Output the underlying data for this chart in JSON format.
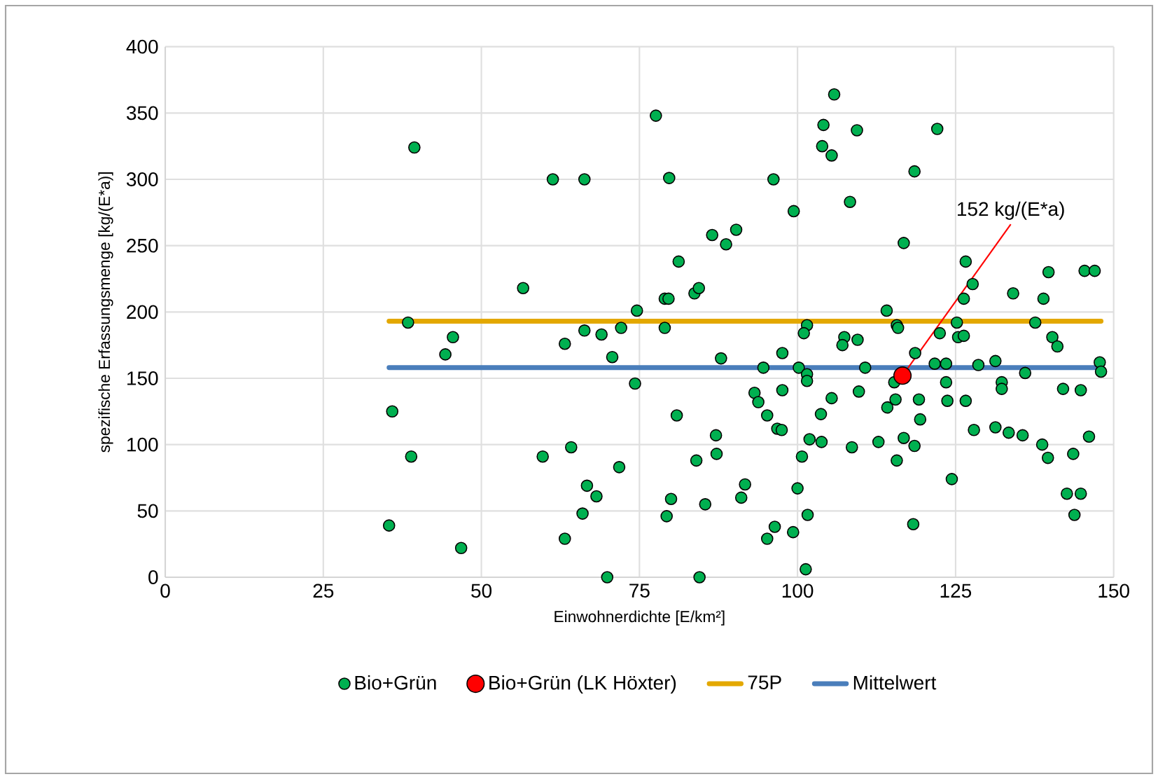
{
  "chart_data": {
    "type": "scatter",
    "xlabel": "Einwohnerdichte [E/km²]",
    "ylabel": "spezifische Erfassungsmenge [kg/(E*a)]",
    "xlim": [
      0,
      150
    ],
    "xticks": [
      0,
      25,
      50,
      75,
      100,
      125,
      150
    ],
    "ylim": [
      0,
      400
    ],
    "yticks": [
      0,
      50,
      100,
      150,
      200,
      250,
      300,
      350,
      400
    ],
    "grid": true,
    "legend": "bottom",
    "marker": "circle",
    "annotations": [
      {
        "text": "152 kg/(E*a)",
        "x": 116.6,
        "y": 152
      }
    ],
    "series": [
      {
        "name": "Bio+Grün",
        "type": "scatter",
        "color": "#00b050",
        "x": [
          39.4,
          61.3,
          66.3,
          77.6,
          79.7,
          86.5,
          88.7,
          90.3,
          81.2,
          56.6,
          79,
          79.6,
          83.7,
          84.4,
          74.6,
          38.4,
          66.3,
          72.1,
          79,
          45.5,
          63.2,
          69,
          44.3,
          70.7,
          87.9,
          74.3,
          35.9,
          80.9,
          38.9,
          59.7,
          64.2,
          87.1,
          87.2,
          84,
          71.8,
          66.7,
          68.2,
          80,
          85.4,
          79.3,
          66,
          35.4,
          46.8,
          63.2,
          69.9,
          84.5,
          105.8,
          104.1,
          109.4,
          122.1,
          103.9,
          105.4,
          118.5,
          96.2,
          108.3,
          99.4,
          116.8,
          126.6,
          139.7,
          145.4,
          147,
          127.7,
          134.1,
          126.3,
          138.9,
          114.1,
          101.5,
          101,
          115.7,
          115.9,
          125.2,
          137.6,
          122.5,
          125.4,
          126.3,
          107.4,
          107.1,
          109.5,
          140.3,
          141.1,
          97.6,
          118.6,
          94.6,
          100.2,
          110.7,
          121.7,
          123.5,
          128.6,
          131.3,
          147.8,
          148,
          101.5,
          101.5,
          136,
          115.3,
          123.5,
          132.3,
          132.3,
          93.2,
          93.8,
          97.6,
          109.7,
          105.4,
          119.2,
          123.7,
          126.6,
          142,
          144.8,
          95.2,
          96.8,
          97.5,
          103.7,
          115.5,
          114.2,
          119.4,
          127.9,
          131.3,
          133.4,
          135.6,
          138.7,
          139.6,
          143.6,
          146.1,
          101.9,
          103.8,
          100.7,
          108.6,
          112.8,
          116.8,
          118.5,
          115.7,
          124.4,
          91.7,
          91.1,
          100,
          142.6,
          144.8,
          143.8,
          96.4,
          95.2,
          99.3,
          101.6,
          118.3,
          101.3
        ],
        "values": [
          324,
          300,
          300,
          348,
          301,
          258,
          251,
          262,
          238,
          218,
          210,
          210,
          214,
          218,
          201,
          192,
          186,
          188,
          188,
          181,
          176,
          183,
          168,
          166,
          165,
          146,
          125,
          122,
          91,
          91,
          98,
          107,
          93,
          88,
          83,
          69,
          61,
          59,
          55,
          46,
          48,
          39,
          22,
          29,
          0,
          0,
          364,
          341,
          337,
          338,
          325,
          318,
          306,
          300,
          283,
          276,
          252,
          238,
          230,
          231,
          231,
          221,
          214,
          210,
          210,
          201,
          190,
          184,
          190,
          188,
          192,
          192,
          184,
          181,
          182,
          181,
          175,
          179,
          181,
          174,
          169,
          169,
          158,
          158,
          158,
          161,
          161,
          160,
          163,
          162,
          155,
          153,
          148,
          154,
          147,
          147,
          147,
          142,
          139,
          132,
          141,
          140,
          135,
          134,
          133,
          133,
          142,
          141,
          122,
          112,
          111,
          123,
          134,
          128,
          119,
          111,
          113,
          109,
          107,
          100,
          90,
          93,
          106,
          104,
          102,
          91,
          98,
          102,
          105,
          99,
          88,
          74,
          70,
          60,
          67,
          63,
          63,
          47,
          38,
          29,
          34,
          47,
          40,
          6
        ]
      },
      {
        "name": "Bio+Grün (LK Höxter)",
        "type": "scatter",
        "color": "#ff0000",
        "x": [
          116.6
        ],
        "values": [
          152
        ]
      },
      {
        "name": "75P",
        "type": "line",
        "marker": "none",
        "color": "#e3a800",
        "x": [
          35.4,
          148
        ],
        "values": [
          193,
          193
        ]
      },
      {
        "name": "Mittelwert",
        "type": "line",
        "marker": "none",
        "color": "#4a7ebb",
        "x": [
          35.4,
          148
        ],
        "values": [
          158,
          158
        ]
      }
    ]
  }
}
